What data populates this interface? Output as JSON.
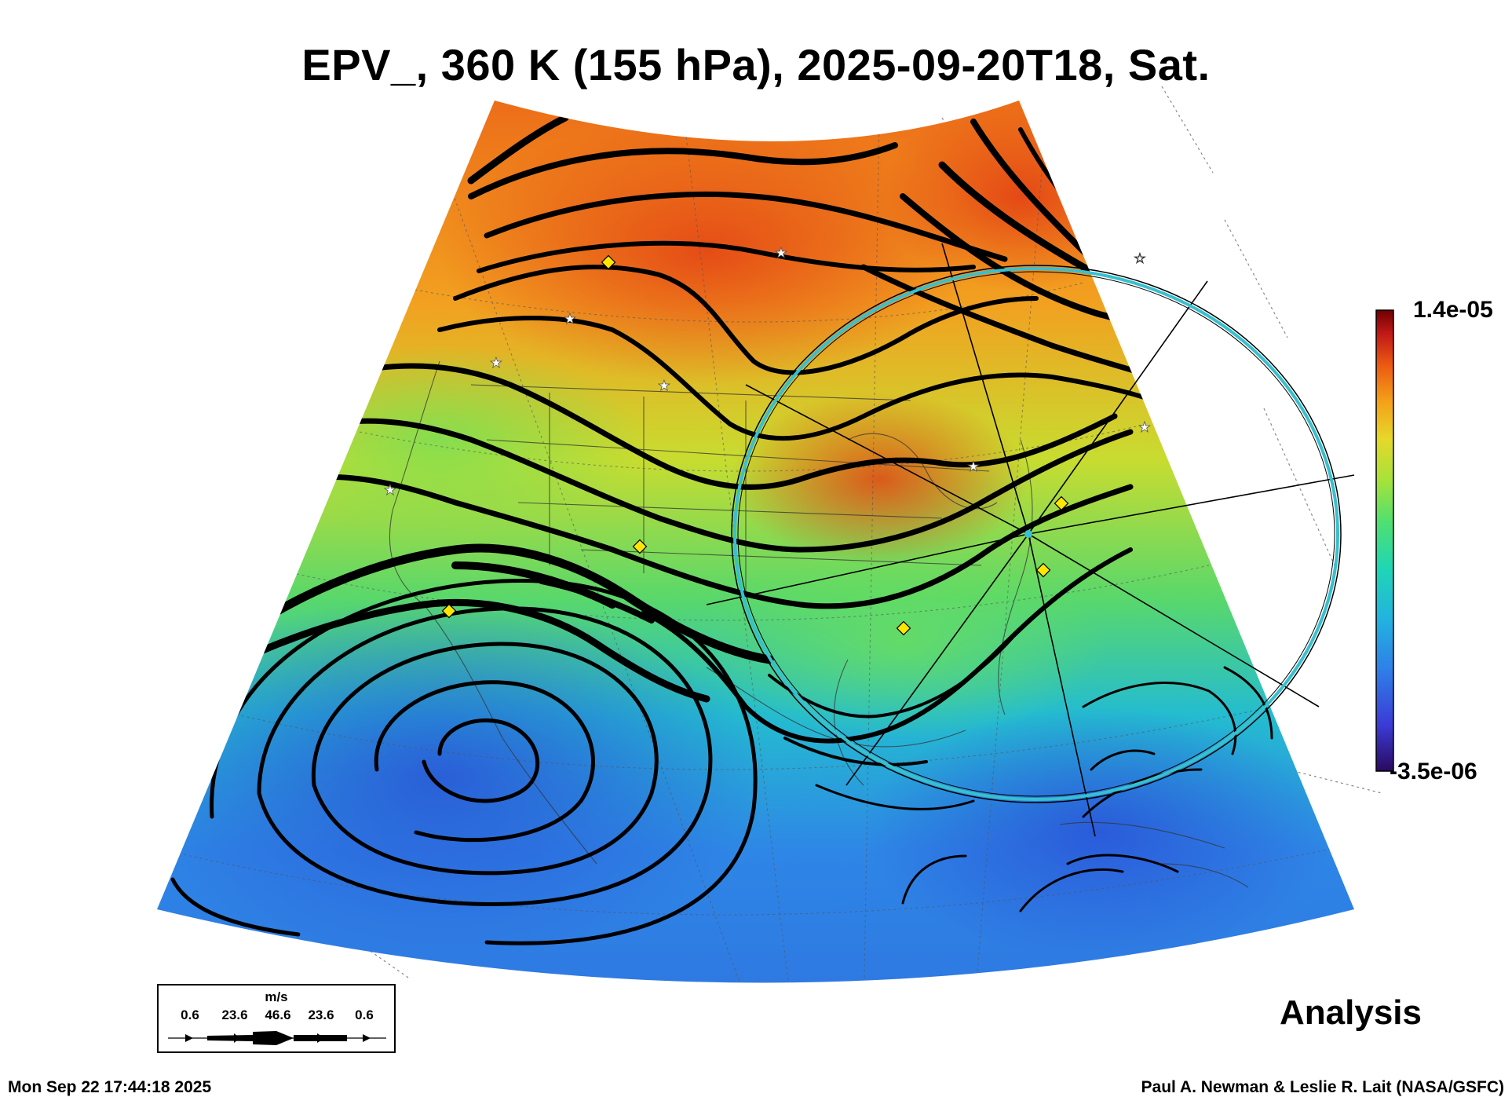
{
  "title": "EPV_, 360 K (155 hPa), 2025-09-20T18, Sat.",
  "colorbar": {
    "max_label": "1.4e-05",
    "min_label": "-3.5e-06",
    "colors": [
      "#2a0a5e",
      "#3b3bd6",
      "#2f7fe8",
      "#22b3e0",
      "#1fd6b4",
      "#4fe070",
      "#a6e23a",
      "#e6d82a",
      "#f4a21a",
      "#ec5a12",
      "#c01818",
      "#700000"
    ]
  },
  "wind_scale": {
    "units": "m/s",
    "labels": [
      "0.6",
      "23.6",
      "46.6",
      "23.6",
      "0.6"
    ]
  },
  "product_label": "Analysis",
  "timestamp": "Mon Sep 22 17:44:18 2025",
  "credit": "Paul A. Newman & Leslie R. Lait (NASA/GSFC)",
  "map_style": {
    "projection": "polar stereographic sector",
    "field": "EPV",
    "streamlines": "black, thickness scaled by wind speed",
    "ring_color": "#37c0cf",
    "marker_colors": {
      "diamond": "#ffe600",
      "star": "#ffffff"
    }
  }
}
